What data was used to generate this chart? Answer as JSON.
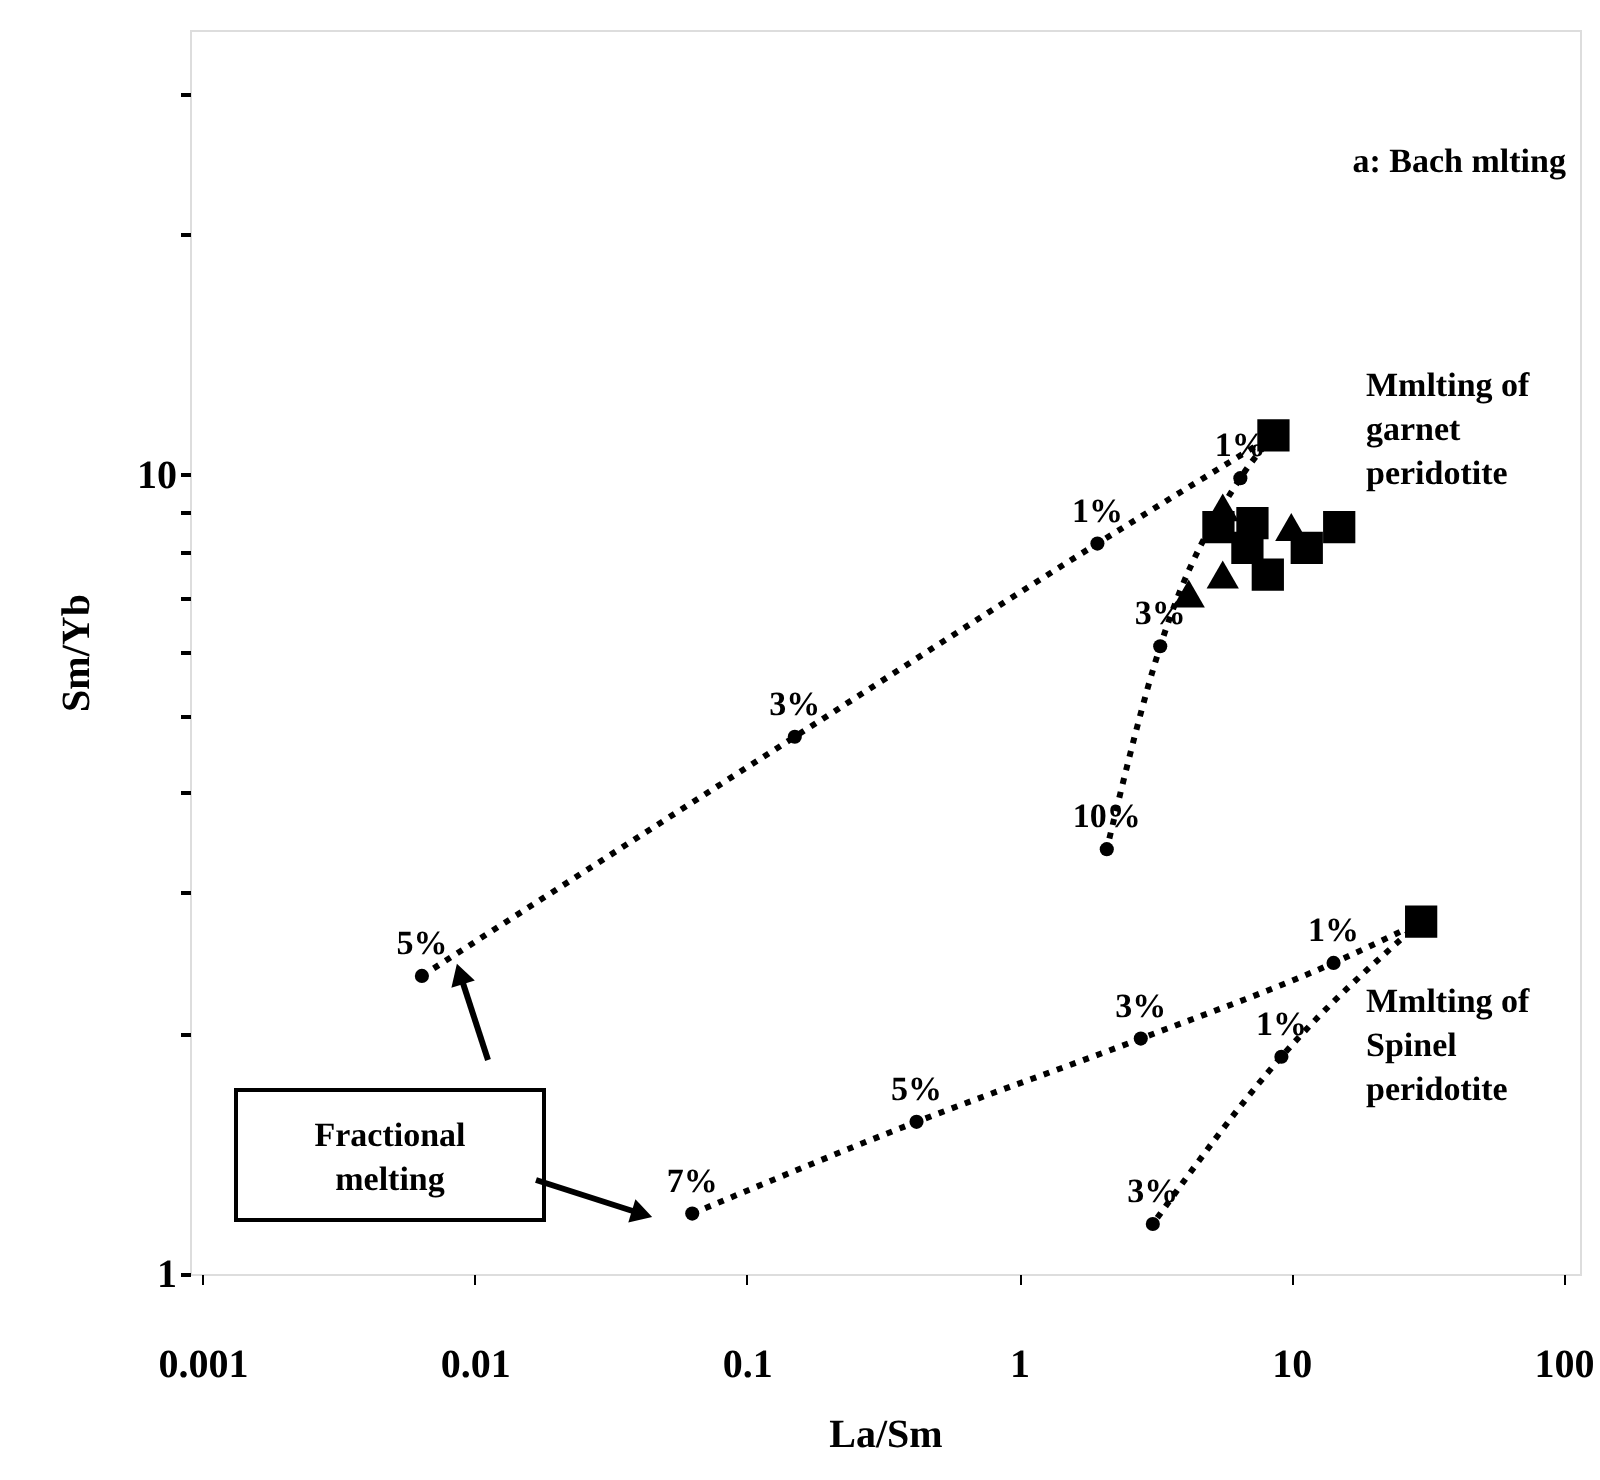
{
  "chart_data": {
    "type": "line",
    "xlabel": "La/Sm",
    "ylabel": "Sm/Yb",
    "log": "xy",
    "grid": false,
    "xlim": [
      0.0009,
      115
    ],
    "ylim": [
      1,
      36
    ],
    "xticks": [
      0.001,
      0.01,
      0.1,
      1,
      10,
      100
    ],
    "yticks": [
      1,
      {
        "value": 2,
        "label": null
      },
      {
        "value": 3,
        "label": null
      },
      {
        "value": 4,
        "label": null
      },
      {
        "value": 5,
        "label": null
      },
      {
        "value": 6,
        "label": null
      },
      {
        "value": 7,
        "label": null
      },
      {
        "value": 8,
        "label": null
      },
      {
        "value": 9,
        "label": null
      },
      10,
      {
        "value": 20,
        "label": null
      },
      {
        "value": 30,
        "label": null
      }
    ],
    "series": [
      {
        "color": "#000000",
        "marker": "circle",
        "line_style": "dotted",
        "x": [
          0.0064,
          0.15,
          1.94,
          8.6
        ],
        "values": [
          2.36,
          4.7,
          8.2,
          11.2
        ]
      },
      {
        "color": "#000000",
        "marker": "circle",
        "line_style": "dotted",
        "x": [
          8.6,
          6.5,
          3.3,
          2.1
        ],
        "values": [
          11.2,
          9.9,
          6.1,
          3.4
        ]
      },
      {
        "color": "#000000",
        "marker": "circle",
        "line_style": "dotted",
        "x": [
          0.063,
          0.42,
          2.8,
          14.3,
          30
        ],
        "values": [
          1.19,
          1.55,
          1.97,
          2.45,
          2.76
        ]
      },
      {
        "color": "#000000",
        "marker": "circle",
        "line_style": "dotted",
        "x": [
          30,
          9.2,
          3.1
        ],
        "values": [
          2.76,
          1.87,
          1.155
        ]
      },
      {
        "type": "scatter",
        "color": "#000000",
        "marker": "square",
        "x": [
          8.6,
          30
        ],
        "values": [
          11.2,
          2.76
        ]
      },
      {
        "type": "scatter",
        "color": "#000000",
        "marker": "square",
        "x": [
          5.4,
          7.2,
          6.9,
          8.2,
          11.4,
          15
        ],
        "values": [
          8.6,
          8.7,
          8.1,
          7.5,
          8.1,
          8.6
        ]
      },
      {
        "type": "scatter",
        "color": "#000000",
        "marker": "triangle",
        "x": [
          5.6,
          4.2,
          5.6,
          10
        ],
        "values": [
          9.1,
          7.1,
          7.5,
          8.6
        ]
      }
    ],
    "annotations": [
      "a: Bach mlting",
      "Mmlting of garnet peridotite",
      "Mmlting of Spinel peridotite",
      "Fractional melting",
      {
        "text": "5%",
        "x": 0.0064,
        "y": 2.36
      },
      {
        "text": "3%",
        "x": 0.15,
        "y": 4.7
      },
      {
        "text": "1%",
        "x": 1.94,
        "y": 8.2
      },
      {
        "text": "1%",
        "x": 6.5,
        "y": 9.9
      },
      {
        "text": "3%",
        "x": 3.3,
        "y": 6.1
      },
      {
        "text": "10%",
        "x": 2.1,
        "y": 3.4
      },
      {
        "text": "7%",
        "x": 0.063,
        "y": 1.19
      },
      {
        "text": "5%",
        "x": 0.42,
        "y": 1.55
      },
      {
        "text": "3%",
        "x": 2.8,
        "y": 1.97
      },
      {
        "text": "1%",
        "x": 14.3,
        "y": 2.45
      },
      {
        "text": "1%",
        "x": 9.2,
        "y": 1.87
      },
      {
        "text": "3%",
        "x": 3.1,
        "y": 1.155
      }
    ]
  }
}
